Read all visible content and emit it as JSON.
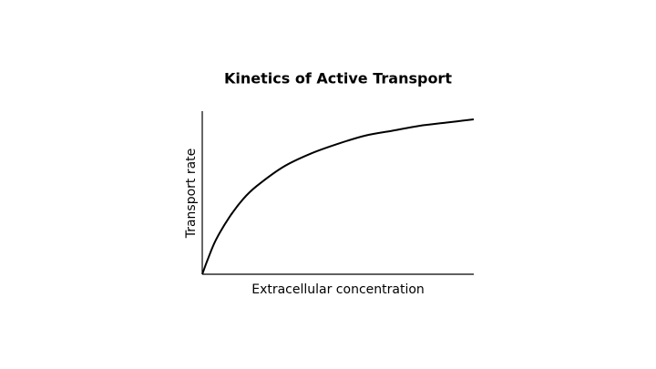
{
  "chart_data": {
    "type": "line",
    "title": "Kinetics of Active Transport",
    "x_label": "Extracellular concentration",
    "y_label": "Transport rate",
    "x": [
      0,
      2,
      5,
      10,
      15,
      20,
      30,
      40,
      50,
      60,
      70,
      80,
      90,
      100
    ],
    "values": [
      0,
      9,
      21,
      35,
      46,
      54,
      66,
      74,
      80,
      85,
      88,
      91,
      93,
      95
    ],
    "color": "#000000",
    "xlim": [
      0,
      100
    ],
    "ylim": [
      0,
      100
    ]
  }
}
